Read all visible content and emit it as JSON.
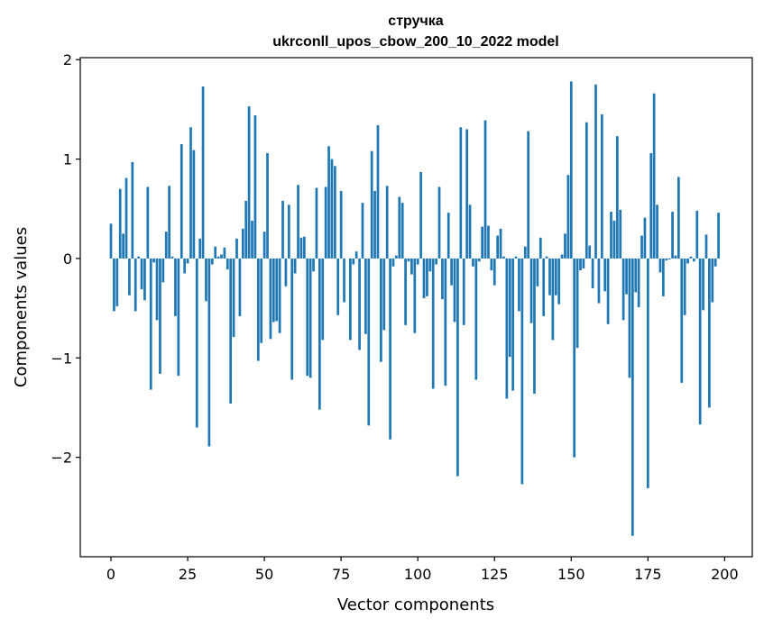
{
  "chart_data": {
    "type": "bar",
    "title": "стручка",
    "subtitle": "ukrconll_upos_cbow_200_10_2022 model",
    "xlabel": "Vector components",
    "ylabel": "Components values",
    "xlim": [
      -10,
      209
    ],
    "ylim": [
      -3.0,
      2.02
    ],
    "xticks": [
      0,
      25,
      50,
      75,
      100,
      125,
      150,
      175,
      200
    ],
    "yticks": [
      -2,
      -1,
      0,
      1,
      2
    ],
    "xtick_labels": [
      "0",
      "25",
      "50",
      "75",
      "100",
      "125",
      "150",
      "175",
      "200"
    ],
    "ytick_labels": [
      "−2",
      "−1",
      "0",
      "1",
      "2"
    ],
    "bar_color": "#1f77b4",
    "grid": false,
    "values": [
      0.35,
      -0.53,
      -0.48,
      0.7,
      0.25,
      0.81,
      -0.37,
      0.97,
      -0.53,
      0.02,
      -0.31,
      -0.42,
      0.72,
      -1.32,
      -0.04,
      -0.62,
      -1.16,
      -0.24,
      0.27,
      0.73,
      0.02,
      -0.58,
      -1.18,
      1.15,
      -0.15,
      -0.05,
      1.32,
      1.09,
      -1.7,
      0.2,
      1.73,
      -0.43,
      -1.89,
      -0.06,
      0.12,
      0.02,
      0.04,
      0.11,
      -0.11,
      -1.46,
      -0.79,
      0.2,
      -0.58,
      0.3,
      0.58,
      1.53,
      0.38,
      1.44,
      -1.03,
      -0.85,
      0.27,
      1.06,
      -0.81,
      -0.64,
      -0.63,
      -0.75,
      0.58,
      -0.28,
      0.54,
      -1.22,
      -0.15,
      0.74,
      0.21,
      0.22,
      -1.18,
      -1.2,
      -0.13,
      0.71,
      -1.52,
      -0.82,
      0.72,
      1.13,
      1.0,
      0.93,
      -0.57,
      0.68,
      -0.44,
      0.0,
      -0.82,
      -0.06,
      0.07,
      -0.92,
      0.56,
      -0.76,
      -1.68,
      1.08,
      0.68,
      1.34,
      -1.04,
      -0.72,
      0.73,
      -1.82,
      -0.08,
      0.03,
      0.62,
      0.56,
      -0.67,
      -0.03,
      -0.16,
      -0.75,
      -0.06,
      0.87,
      -0.4,
      -0.38,
      -0.13,
      -1.31,
      -0.06,
      0.72,
      -0.41,
      -1.28,
      0.46,
      -0.27,
      -0.64,
      -2.19,
      1.32,
      -0.67,
      1.3,
      0.54,
      -0.08,
      -1.22,
      -0.03,
      0.32,
      1.39,
      0.33,
      -0.12,
      -0.27,
      0.23,
      0.3,
      0.02,
      -1.41,
      -0.99,
      -1.33,
      0.02,
      -0.53,
      -2.27,
      0.12,
      1.28,
      -0.65,
      -1.36,
      -0.28,
      0.21,
      -0.58,
      0.02,
      -0.37,
      -0.82,
      -0.37,
      -0.46,
      0.04,
      0.25,
      0.84,
      1.78,
      -2.0,
      -0.9,
      -0.12,
      -0.1,
      1.37,
      0.13,
      -0.3,
      1.75,
      -0.45,
      1.45,
      -0.33,
      -0.66,
      0.47,
      0.38,
      1.23,
      0.49,
      -0.62,
      -0.36,
      -1.2,
      -2.79,
      -0.34,
      -0.49,
      0.23,
      0.41,
      -2.31,
      1.06,
      1.66,
      0.54,
      -0.14,
      -0.38,
      -0.02,
      -0.01,
      0.47,
      0.03,
      0.82,
      -1.25,
      -0.57,
      -0.05,
      0.02,
      -0.03,
      0.48,
      -1.67,
      -0.52,
      0.24,
      -1.5,
      -0.44,
      -0.08,
      0.46,
      0.0
    ]
  }
}
